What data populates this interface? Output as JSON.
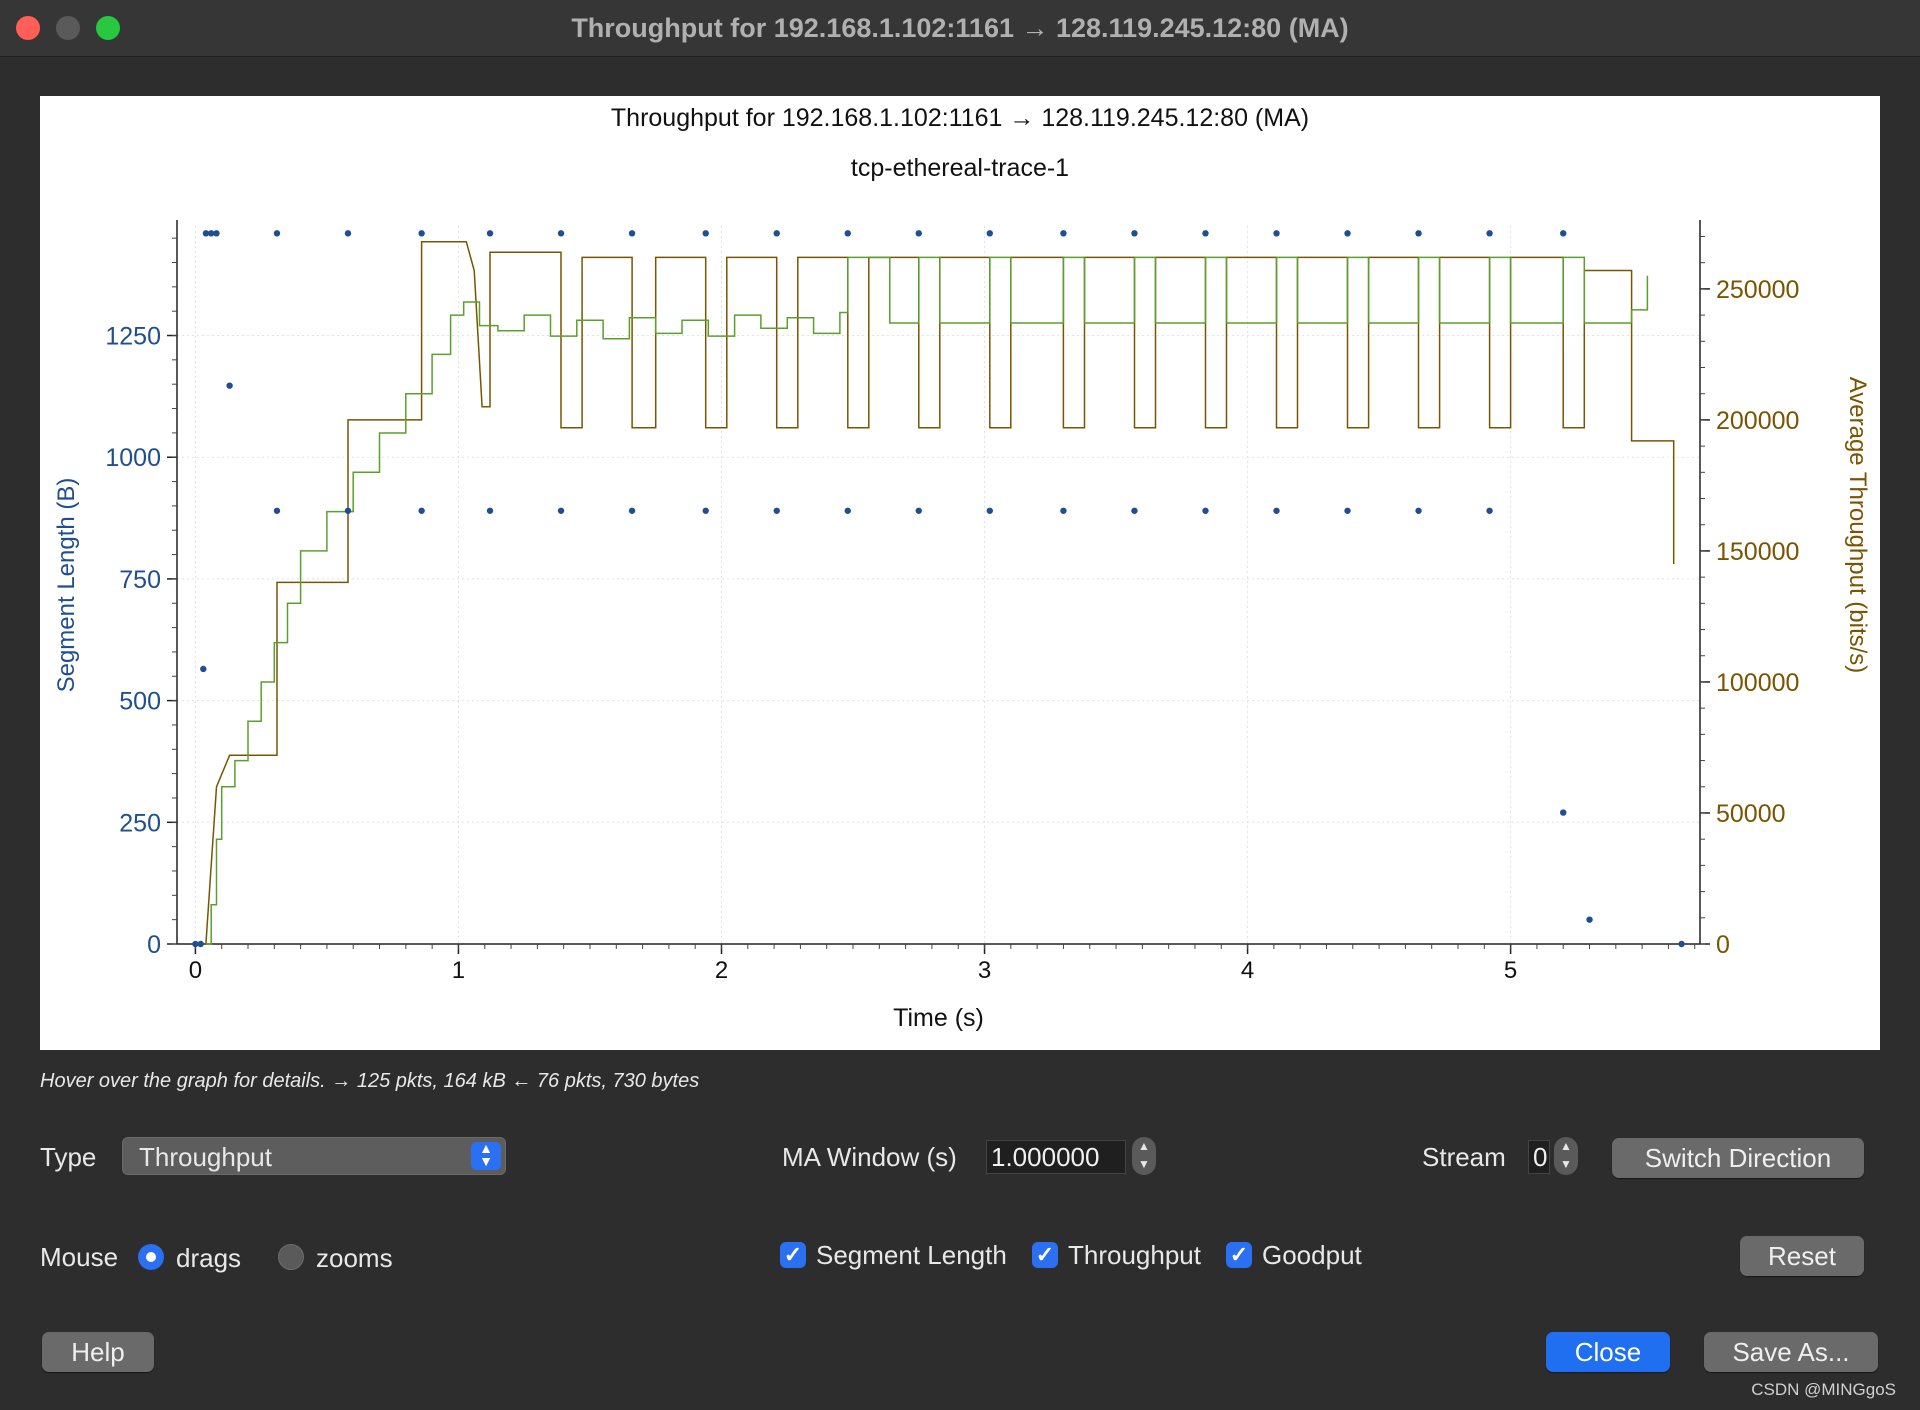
{
  "window": {
    "title": "Throughput for 192.168.1.102:1161 → 128.119.245.12:80 (MA)"
  },
  "colors": {
    "segment": "#1f4e91",
    "throughput": "#7a5400",
    "goodput": "#5aa02c",
    "accent": "#2b6ff2"
  },
  "chart_data": {
    "type": "scatter",
    "title": "Throughput for 192.168.1.102:1161 → 128.119.245.12:80 (MA)",
    "subtitle": "tcp-ethereal-trace-1",
    "xlabel": "Time (s)",
    "ylabel_left": "Segment Length (B)",
    "ylabel_right": "Average Throughput (bits/s)",
    "xlim": [
      -0.07,
      5.72
    ],
    "ylim_left": [
      0,
      1475
    ],
    "ylim_right": [
      0,
      274000
    ],
    "x_ticks": [
      0,
      1,
      2,
      3,
      4,
      5
    ],
    "y_ticks_left": [
      0,
      250,
      500,
      750,
      1000,
      1250
    ],
    "y_ticks_right": [
      0,
      50000,
      100000,
      150000,
      200000,
      250000
    ],
    "grid": true,
    "segment_points": [
      [
        0.0,
        0
      ],
      [
        0.02,
        0
      ],
      [
        0.03,
        565
      ],
      [
        0.04,
        1460
      ],
      [
        0.06,
        1460
      ],
      [
        0.08,
        1460
      ],
      [
        0.13,
        1147
      ],
      [
        0.31,
        1460
      ],
      [
        0.31,
        890
      ],
      [
        0.58,
        1460
      ],
      [
        0.58,
        890
      ],
      [
        0.86,
        1460
      ],
      [
        0.86,
        890
      ],
      [
        1.12,
        1460
      ],
      [
        1.12,
        890
      ],
      [
        1.39,
        1460
      ],
      [
        1.39,
        890
      ],
      [
        1.66,
        1460
      ],
      [
        1.66,
        890
      ],
      [
        1.94,
        1460
      ],
      [
        1.94,
        890
      ],
      [
        2.21,
        1460
      ],
      [
        2.21,
        890
      ],
      [
        2.48,
        1460
      ],
      [
        2.48,
        890
      ],
      [
        2.75,
        1460
      ],
      [
        2.75,
        890
      ],
      [
        3.02,
        1460
      ],
      [
        3.02,
        890
      ],
      [
        3.3,
        1460
      ],
      [
        3.3,
        890
      ],
      [
        3.57,
        1460
      ],
      [
        3.57,
        890
      ],
      [
        3.84,
        1460
      ],
      [
        3.84,
        890
      ],
      [
        4.11,
        1460
      ],
      [
        4.11,
        890
      ],
      [
        4.38,
        1460
      ],
      [
        4.38,
        890
      ],
      [
        4.65,
        1460
      ],
      [
        4.65,
        890
      ],
      [
        4.92,
        1460
      ],
      [
        4.92,
        890
      ],
      [
        5.2,
        1460
      ],
      [
        5.2,
        270
      ],
      [
        5.3,
        50
      ],
      [
        5.65,
        0
      ]
    ],
    "throughput_steps": [
      [
        0.0,
        0
      ],
      [
        0.04,
        0
      ],
      [
        0.08,
        60000
      ],
      [
        0.13,
        72000
      ],
      [
        0.31,
        72000
      ],
      [
        0.31,
        138000
      ],
      [
        0.58,
        138000
      ],
      [
        0.58,
        200000
      ],
      [
        0.86,
        200000
      ],
      [
        0.86,
        268000
      ],
      [
        1.03,
        268000
      ],
      [
        1.06,
        257000
      ],
      [
        1.09,
        205000
      ],
      [
        1.12,
        205000
      ],
      [
        1.12,
        264000
      ],
      [
        1.39,
        264000
      ],
      [
        1.39,
        197000
      ],
      [
        1.47,
        197000
      ],
      [
        1.47,
        262000
      ],
      [
        1.66,
        262000
      ],
      [
        1.66,
        197000
      ],
      [
        1.75,
        197000
      ],
      [
        1.75,
        262000
      ],
      [
        1.94,
        262000
      ],
      [
        1.94,
        197000
      ],
      [
        2.02,
        197000
      ],
      [
        2.02,
        262000
      ],
      [
        2.21,
        262000
      ],
      [
        2.21,
        197000
      ],
      [
        2.29,
        197000
      ],
      [
        2.29,
        262000
      ],
      [
        2.48,
        262000
      ],
      [
        2.48,
        197000
      ],
      [
        2.56,
        197000
      ],
      [
        2.56,
        262000
      ],
      [
        2.75,
        262000
      ],
      [
        2.75,
        197000
      ],
      [
        2.83,
        197000
      ],
      [
        2.83,
        262000
      ],
      [
        3.02,
        262000
      ],
      [
        3.02,
        197000
      ],
      [
        3.1,
        197000
      ],
      [
        3.1,
        262000
      ],
      [
        3.3,
        262000
      ],
      [
        3.3,
        197000
      ],
      [
        3.38,
        197000
      ],
      [
        3.38,
        262000
      ],
      [
        3.57,
        262000
      ],
      [
        3.57,
        197000
      ],
      [
        3.65,
        197000
      ],
      [
        3.65,
        262000
      ],
      [
        3.84,
        262000
      ],
      [
        3.84,
        197000
      ],
      [
        3.92,
        197000
      ],
      [
        3.92,
        262000
      ],
      [
        4.11,
        262000
      ],
      [
        4.11,
        197000
      ],
      [
        4.19,
        197000
      ],
      [
        4.19,
        262000
      ],
      [
        4.38,
        262000
      ],
      [
        4.38,
        197000
      ],
      [
        4.46,
        197000
      ],
      [
        4.46,
        262000
      ],
      [
        4.65,
        262000
      ],
      [
        4.65,
        197000
      ],
      [
        4.73,
        197000
      ],
      [
        4.73,
        262000
      ],
      [
        4.92,
        262000
      ],
      [
        4.92,
        197000
      ],
      [
        5.0,
        197000
      ],
      [
        5.0,
        262000
      ],
      [
        5.2,
        262000
      ],
      [
        5.2,
        197000
      ],
      [
        5.28,
        197000
      ],
      [
        5.28,
        257000
      ],
      [
        5.46,
        257000
      ],
      [
        5.46,
        192000
      ],
      [
        5.62,
        192000
      ],
      [
        5.62,
        145000
      ]
    ],
    "goodput_steps": [
      [
        0.04,
        0
      ],
      [
        0.06,
        15000
      ],
      [
        0.08,
        40000
      ],
      [
        0.1,
        60000
      ],
      [
        0.15,
        70000
      ],
      [
        0.2,
        85000
      ],
      [
        0.25,
        100000
      ],
      [
        0.3,
        115000
      ],
      [
        0.35,
        130000
      ],
      [
        0.4,
        150000
      ],
      [
        0.5,
        165000
      ],
      [
        0.6,
        180000
      ],
      [
        0.7,
        195000
      ],
      [
        0.8,
        210000
      ],
      [
        0.9,
        225000
      ],
      [
        0.97,
        240000
      ],
      [
        1.02,
        245000
      ],
      [
        1.08,
        236000
      ],
      [
        1.15,
        234000
      ],
      [
        1.25,
        240000
      ],
      [
        1.35,
        232000
      ],
      [
        1.45,
        238000
      ],
      [
        1.55,
        231000
      ],
      [
        1.65,
        239000
      ],
      [
        1.75,
        233000
      ],
      [
        1.85,
        238000
      ],
      [
        1.95,
        232000
      ],
      [
        2.05,
        240000
      ],
      [
        2.15,
        235000
      ],
      [
        2.25,
        239000
      ],
      [
        2.35,
        233000
      ],
      [
        2.45,
        241000
      ],
      [
        2.48,
        262000
      ],
      [
        2.56,
        262000
      ],
      [
        2.64,
        237000
      ],
      [
        2.75,
        262000
      ],
      [
        2.83,
        237000
      ],
      [
        3.02,
        262000
      ],
      [
        3.1,
        237000
      ],
      [
        3.3,
        262000
      ],
      [
        3.38,
        237000
      ],
      [
        3.57,
        262000
      ],
      [
        3.65,
        237000
      ],
      [
        3.84,
        262000
      ],
      [
        3.92,
        237000
      ],
      [
        4.11,
        262000
      ],
      [
        4.19,
        237000
      ],
      [
        4.38,
        262000
      ],
      [
        4.46,
        237000
      ],
      [
        4.65,
        262000
      ],
      [
        4.73,
        237000
      ],
      [
        4.92,
        262000
      ],
      [
        5.0,
        237000
      ],
      [
        5.2,
        262000
      ],
      [
        5.28,
        237000
      ],
      [
        5.46,
        242000
      ],
      [
        5.52,
        255000
      ]
    ]
  },
  "status": {
    "hint": "Hover over the graph for details. → 125 pkts, 164 kB ← 76 pkts, 730 bytes"
  },
  "controls": {
    "type_label": "Type",
    "type_value": "Throughput",
    "ma_window_label": "MA Window (s)",
    "ma_window_value": "1.000000",
    "stream_label": "Stream",
    "stream_value": "0",
    "switch_direction": "Switch Direction",
    "mouse_label": "Mouse",
    "mouse_drags": "drags",
    "mouse_zooms": "zooms",
    "mouse_mode": "drags",
    "check_segment": "Segment Length",
    "check_throughput": "Throughput",
    "check_goodput": "Goodput",
    "reset": "Reset",
    "help": "Help",
    "close": "Close",
    "save_as": "Save As..."
  },
  "watermark": "CSDN @MINGgoS"
}
